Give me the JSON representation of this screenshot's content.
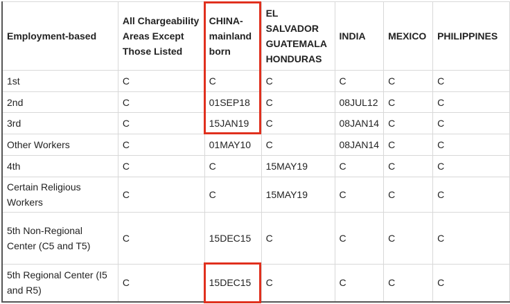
{
  "table": {
    "headers": [
      "Employment-based",
      "All Chargeability Areas Except Those Listed",
      "CHINA-mainland born",
      "EL SALVADOR GUATEMALA HONDURAS",
      "INDIA",
      "MEXICO",
      "PHILIPPINES"
    ],
    "rows": [
      [
        "1st",
        "C",
        "C",
        "C",
        "C",
        "C",
        "C"
      ],
      [
        "2nd",
        "C",
        "01SEP18",
        "C",
        "08JUL12",
        "C",
        "C"
      ],
      [
        "3rd",
        "C",
        "15JAN19",
        "C",
        "08JAN14",
        "C",
        "C"
      ],
      [
        "Other Workers",
        "C",
        "01MAY10",
        "C",
        "08JAN14",
        "C",
        "C"
      ],
      [
        "4th",
        "C",
        "C",
        "15MAY19",
        "C",
        "C",
        "C"
      ],
      [
        "Certain Religious Workers",
        "C",
        "C",
        "15MAY19",
        "C",
        "C",
        "C"
      ],
      [
        "5th Non-Regional Center (C5 and T5)",
        "C",
        "15DEC15",
        "C",
        "C",
        "C",
        "C"
      ],
      [
        "5th Regional Center (I5 and R5)",
        "C",
        "15DEC15",
        "C",
        "C",
        "C",
        "C"
      ]
    ]
  },
  "highlight_color": "#e0301e"
}
